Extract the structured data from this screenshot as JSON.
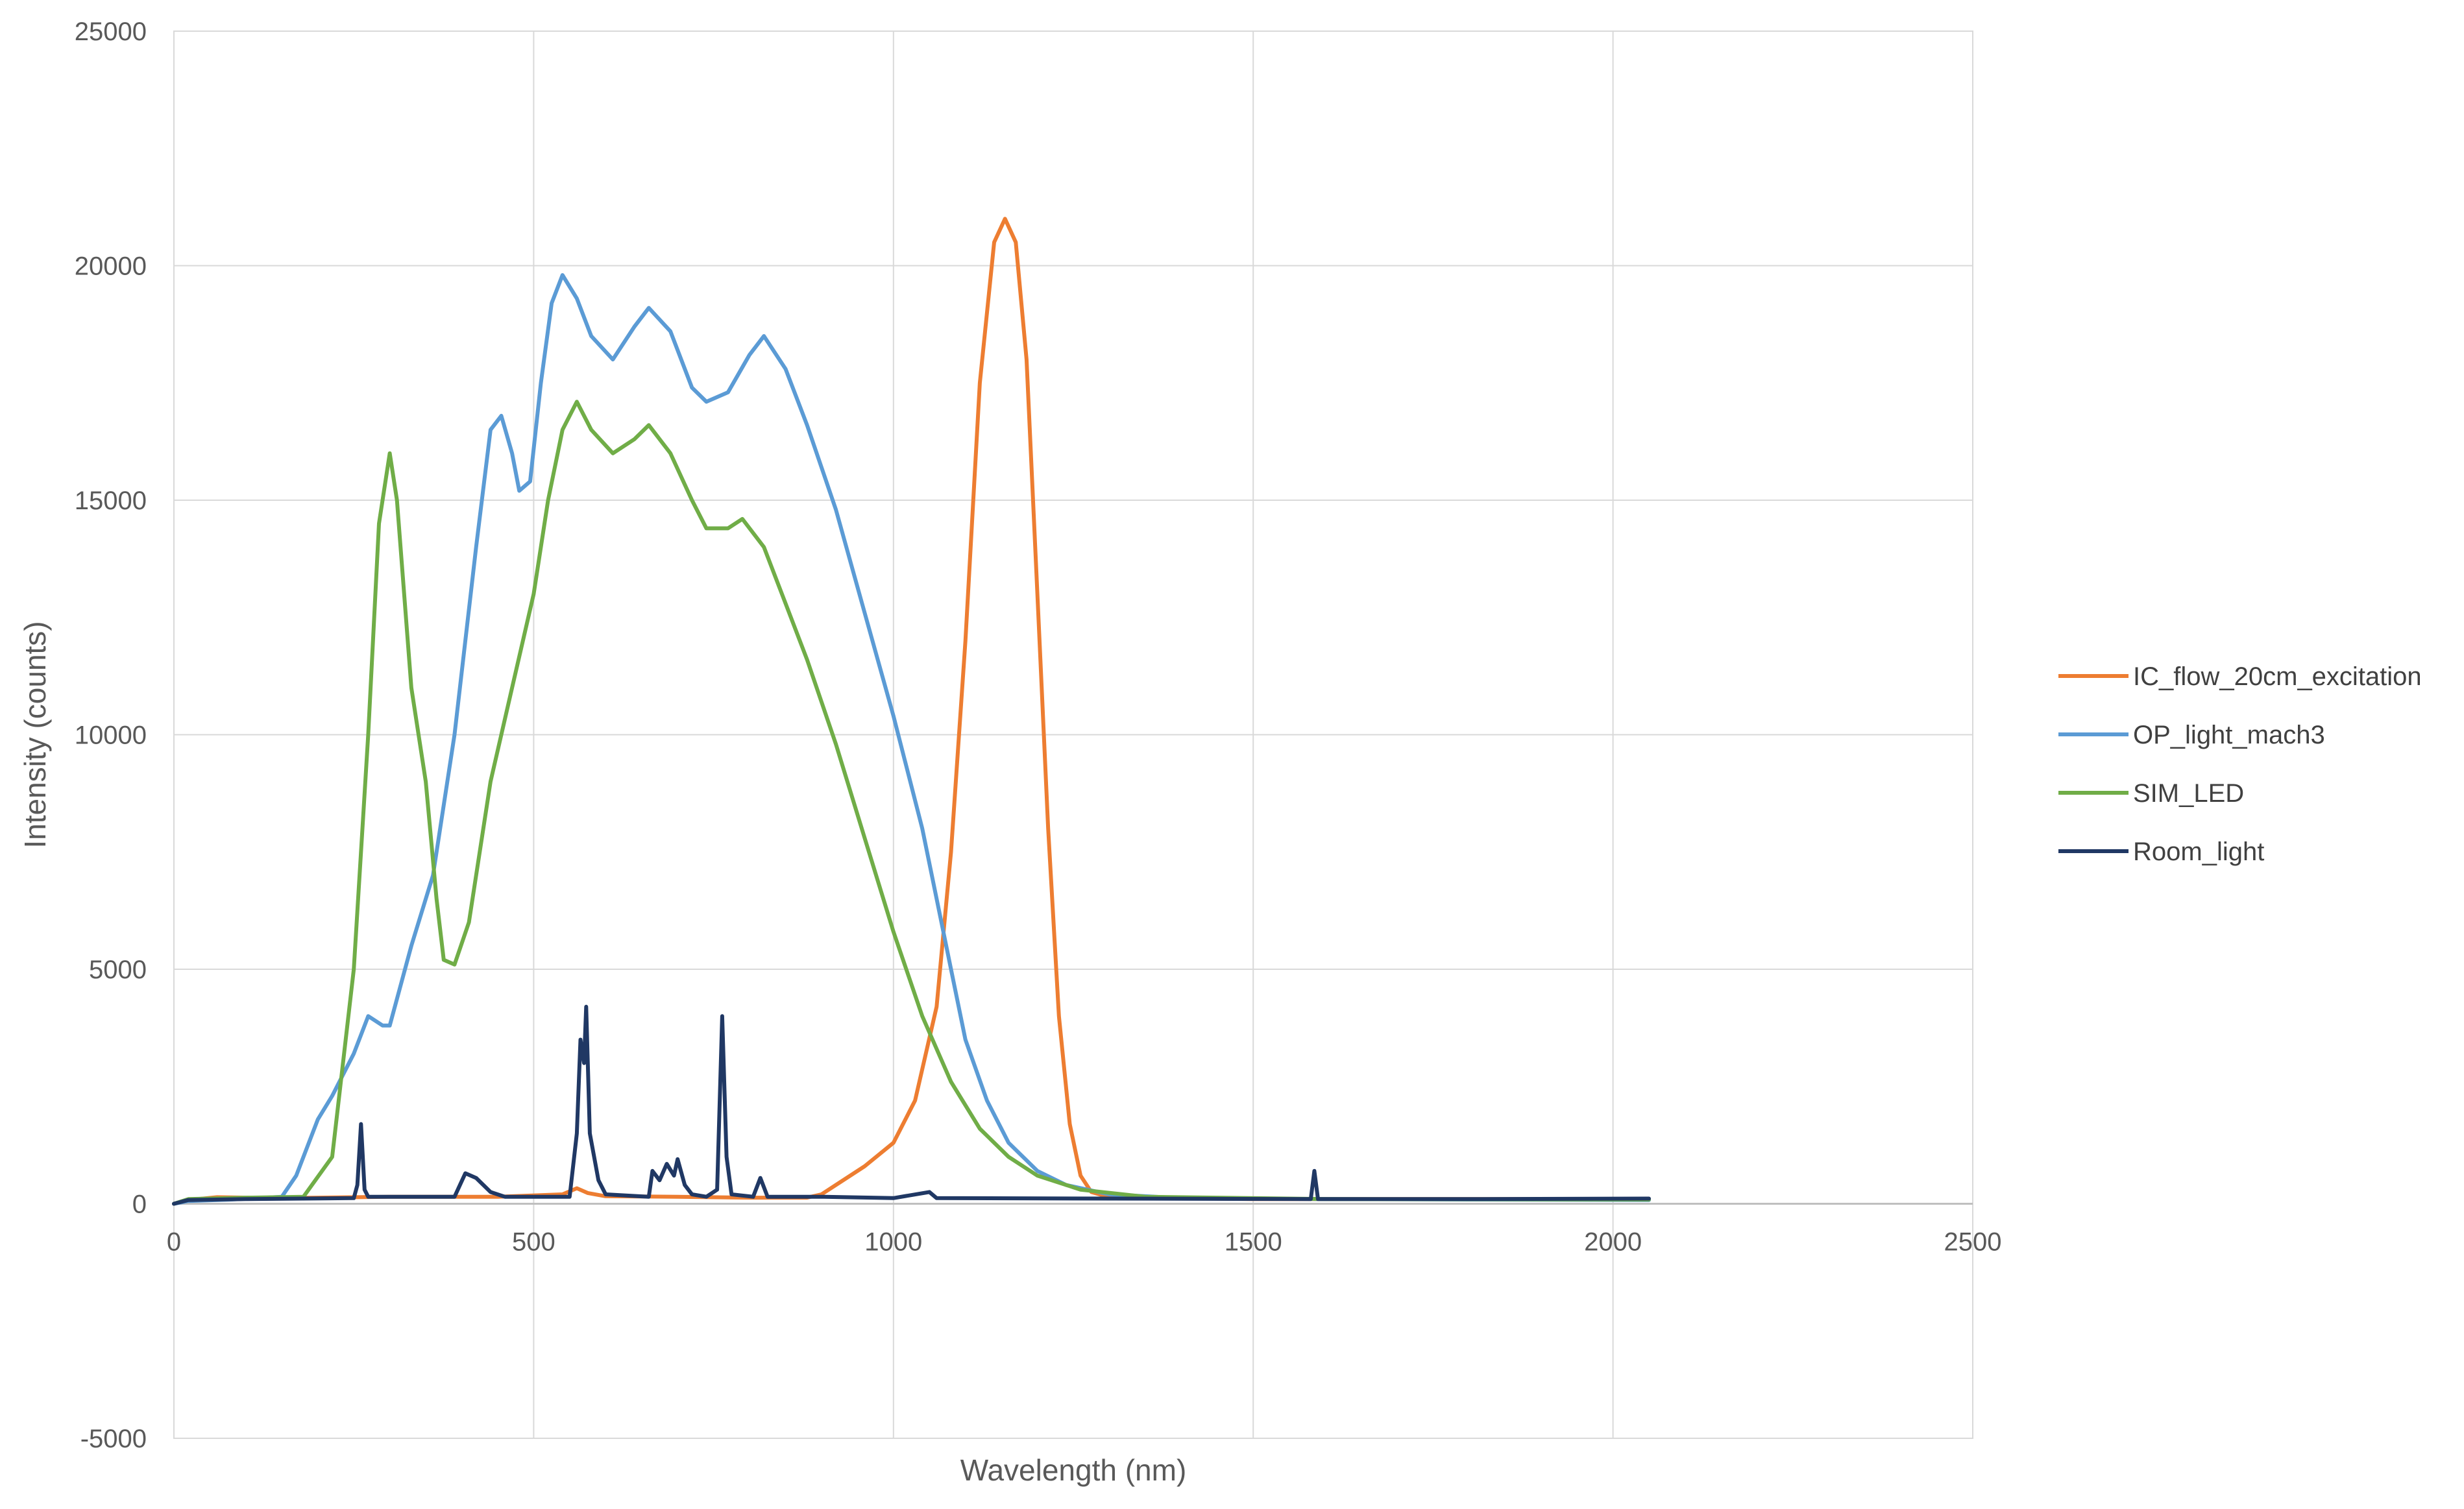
{
  "chart_data": {
    "type": "line",
    "title": "",
    "xlabel": "Wavelength (nm)",
    "ylabel": "Intensity (counts)",
    "xlim": [
      0,
      2500
    ],
    "ylim": [
      -5000,
      25000
    ],
    "x_ticks": [
      0,
      500,
      1000,
      1500,
      2000,
      2500
    ],
    "y_ticks": [
      -5000,
      0,
      5000,
      10000,
      15000,
      20000,
      25000
    ],
    "grid": true,
    "legend_position": "right",
    "series": [
      {
        "name": "IC_flow_20cm_excitation",
        "color": "#ED7D31",
        "points": [
          [
            0,
            0
          ],
          [
            20,
            80
          ],
          [
            60,
            140
          ],
          [
            150,
            120
          ],
          [
            300,
            150
          ],
          [
            450,
            150
          ],
          [
            540,
            200
          ],
          [
            560,
            330
          ],
          [
            575,
            230
          ],
          [
            600,
            160
          ],
          [
            700,
            150
          ],
          [
            800,
            130
          ],
          [
            880,
            130
          ],
          [
            900,
            200
          ],
          [
            930,
            500
          ],
          [
            960,
            800
          ],
          [
            1000,
            1300
          ],
          [
            1030,
            2200
          ],
          [
            1060,
            4200
          ],
          [
            1080,
            7500
          ],
          [
            1100,
            12000
          ],
          [
            1120,
            17500
          ],
          [
            1140,
            20500
          ],
          [
            1155,
            21000
          ],
          [
            1170,
            20500
          ],
          [
            1185,
            18000
          ],
          [
            1200,
            13000
          ],
          [
            1215,
            8000
          ],
          [
            1230,
            4000
          ],
          [
            1245,
            1700
          ],
          [
            1260,
            600
          ],
          [
            1275,
            250
          ],
          [
            1300,
            140
          ],
          [
            1500,
            100
          ],
          [
            1800,
            100
          ],
          [
            2050,
            100
          ]
        ]
      },
      {
        "name": "OP_light_mach3",
        "color": "#5B9BD5",
        "points": [
          [
            0,
            0
          ],
          [
            20,
            60
          ],
          [
            80,
            90
          ],
          [
            150,
            150
          ],
          [
            170,
            600
          ],
          [
            200,
            1800
          ],
          [
            220,
            2300
          ],
          [
            250,
            3200
          ],
          [
            270,
            4000
          ],
          [
            290,
            3800
          ],
          [
            300,
            3800
          ],
          [
            330,
            5500
          ],
          [
            360,
            7000
          ],
          [
            390,
            10000
          ],
          [
            420,
            14000
          ],
          [
            440,
            16500
          ],
          [
            455,
            16800
          ],
          [
            470,
            16000
          ],
          [
            480,
            15200
          ],
          [
            495,
            15400
          ],
          [
            510,
            17500
          ],
          [
            525,
            19200
          ],
          [
            540,
            19800
          ],
          [
            560,
            19300
          ],
          [
            580,
            18500
          ],
          [
            610,
            18000
          ],
          [
            640,
            18700
          ],
          [
            660,
            19100
          ],
          [
            690,
            18600
          ],
          [
            720,
            17400
          ],
          [
            740,
            17100
          ],
          [
            770,
            17300
          ],
          [
            800,
            18100
          ],
          [
            820,
            18500
          ],
          [
            850,
            17800
          ],
          [
            880,
            16600
          ],
          [
            920,
            14800
          ],
          [
            960,
            12600
          ],
          [
            1000,
            10400
          ],
          [
            1040,
            8000
          ],
          [
            1080,
            5000
          ],
          [
            1100,
            3500
          ],
          [
            1130,
            2200
          ],
          [
            1160,
            1300
          ],
          [
            1200,
            700
          ],
          [
            1240,
            400
          ],
          [
            1300,
            200
          ],
          [
            1400,
            120
          ],
          [
            1600,
            100
          ],
          [
            1800,
            90
          ],
          [
            2050,
            80
          ]
        ]
      },
      {
        "name": "SIM_LED",
        "color": "#70AD47",
        "points": [
          [
            0,
            0
          ],
          [
            20,
            100
          ],
          [
            100,
            130
          ],
          [
            180,
            150
          ],
          [
            220,
            1000
          ],
          [
            250,
            5000
          ],
          [
            270,
            10000
          ],
          [
            285,
            14500
          ],
          [
            300,
            16000
          ],
          [
            310,
            15000
          ],
          [
            330,
            11000
          ],
          [
            350,
            9000
          ],
          [
            365,
            6500
          ],
          [
            375,
            5200
          ],
          [
            390,
            5100
          ],
          [
            410,
            6000
          ],
          [
            440,
            9000
          ],
          [
            470,
            11000
          ],
          [
            500,
            13000
          ],
          [
            520,
            15000
          ],
          [
            540,
            16500
          ],
          [
            560,
            17100
          ],
          [
            580,
            16500
          ],
          [
            610,
            16000
          ],
          [
            640,
            16300
          ],
          [
            660,
            16600
          ],
          [
            690,
            16000
          ],
          [
            720,
            15000
          ],
          [
            740,
            14400
          ],
          [
            770,
            14400
          ],
          [
            790,
            14600
          ],
          [
            820,
            14000
          ],
          [
            850,
            12800
          ],
          [
            880,
            11600
          ],
          [
            920,
            9800
          ],
          [
            960,
            7800
          ],
          [
            1000,
            5800
          ],
          [
            1040,
            4000
          ],
          [
            1080,
            2600
          ],
          [
            1120,
            1600
          ],
          [
            1160,
            1000
          ],
          [
            1200,
            600
          ],
          [
            1260,
            300
          ],
          [
            1350,
            150
          ],
          [
            1600,
            100
          ],
          [
            2050,
            90
          ]
        ]
      },
      {
        "name": "Room_light",
        "color": "#203864",
        "points": [
          [
            0,
            0
          ],
          [
            20,
            80
          ],
          [
            100,
            100
          ],
          [
            250,
            120
          ],
          [
            255,
            400
          ],
          [
            260,
            1700
          ],
          [
            265,
            300
          ],
          [
            270,
            150
          ],
          [
            390,
            150
          ],
          [
            405,
            650
          ],
          [
            420,
            550
          ],
          [
            440,
            250
          ],
          [
            460,
            150
          ],
          [
            550,
            150
          ],
          [
            560,
            1500
          ],
          [
            565,
            3500
          ],
          [
            570,
            3000
          ],
          [
            573,
            4200
          ],
          [
            578,
            1500
          ],
          [
            590,
            500
          ],
          [
            600,
            200
          ],
          [
            660,
            150
          ],
          [
            665,
            700
          ],
          [
            675,
            500
          ],
          [
            685,
            850
          ],
          [
            695,
            600
          ],
          [
            700,
            950
          ],
          [
            710,
            400
          ],
          [
            720,
            200
          ],
          [
            740,
            150
          ],
          [
            755,
            300
          ],
          [
            762,
            4000
          ],
          [
            768,
            1000
          ],
          [
            775,
            200
          ],
          [
            805,
            150
          ],
          [
            815,
            550
          ],
          [
            825,
            150
          ],
          [
            900,
            150
          ],
          [
            1000,
            120
          ],
          [
            1050,
            250
          ],
          [
            1060,
            120
          ],
          [
            1580,
            100
          ],
          [
            1585,
            700
          ],
          [
            1590,
            100
          ],
          [
            1800,
            100
          ],
          [
            2050,
            110
          ]
        ]
      }
    ]
  }
}
